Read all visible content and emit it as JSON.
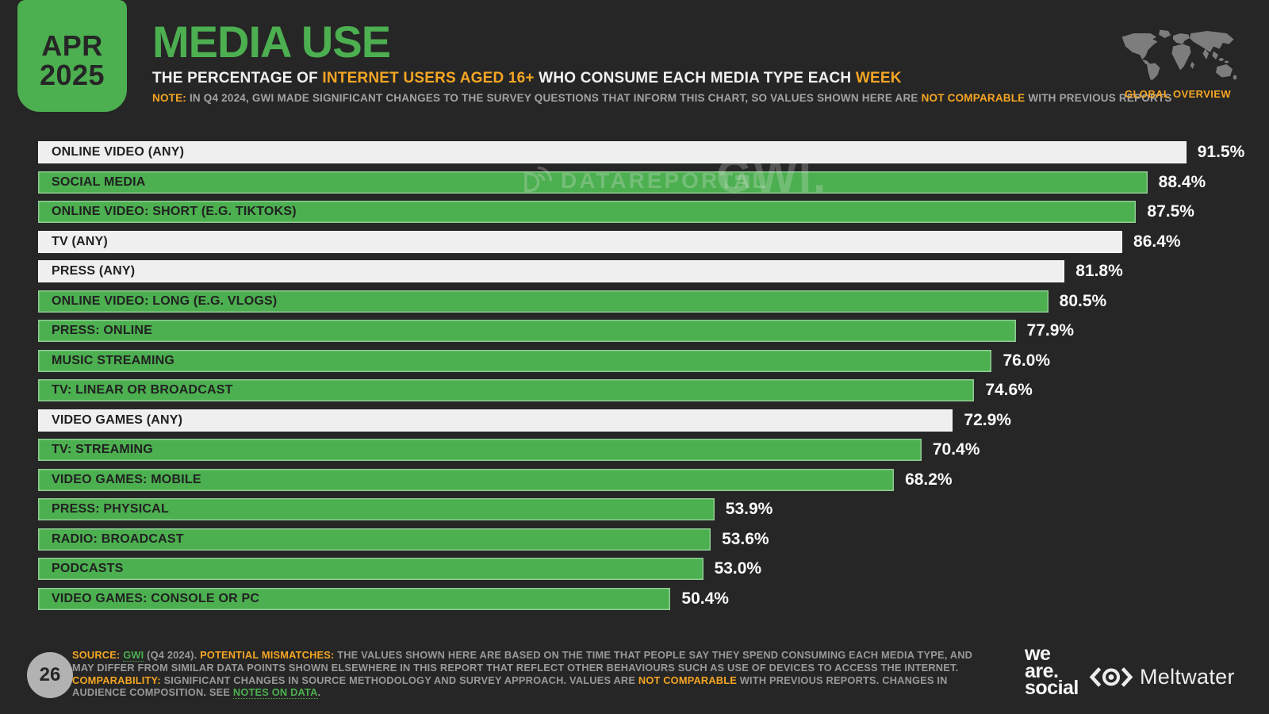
{
  "badge": {
    "month": "APR",
    "year": "2025"
  },
  "header": {
    "title": "MEDIA USE",
    "subtitle_segments": [
      {
        "t": "THE PERCENTAGE OF "
      },
      {
        "t": "INTERNET USERS AGED 16+",
        "c": "orange"
      },
      {
        "t": " WHO CONSUME EACH MEDIA TYPE EACH "
      },
      {
        "t": "WEEK",
        "c": "orange"
      }
    ],
    "note_segments": [
      {
        "t": "NOTE:",
        "c": "orange-bold"
      },
      {
        "t": " IN Q4 2024, GWI MADE SIGNIFICANT CHANGES TO THE SURVEY QUESTIONS THAT INFORM THIS CHART, SO VALUES SHOWN HERE ARE "
      },
      {
        "t": "NOT COMPARABLE",
        "c": "orange-bold"
      },
      {
        "t": " WITH PREVIOUS REPORTS"
      }
    ]
  },
  "global_overview": {
    "label": "GLOBAL OVERVIEW"
  },
  "watermark": {
    "brand": "DATAREPORTAL",
    "gwi": "GWI."
  },
  "chart_data": {
    "type": "bar",
    "orientation": "horizontal",
    "title": "MEDIA USE",
    "xlabel": "",
    "ylabel": "",
    "unit": "%",
    "xlim": [
      0,
      95
    ],
    "grid": false,
    "legend": "none",
    "categories": [
      "ONLINE VIDEO (ANY)",
      "SOCIAL MEDIA",
      "ONLINE VIDEO: SHORT (E.G. TIKTOKS)",
      "TV (ANY)",
      "PRESS (ANY)",
      "ONLINE VIDEO: LONG (E.G. VLOGS)",
      "PRESS: ONLINE",
      "MUSIC STREAMING",
      "TV: LINEAR OR BROADCAST",
      "VIDEO GAMES (ANY)",
      "TV: STREAMING",
      "VIDEO GAMES: MOBILE",
      "PRESS: PHYSICAL",
      "RADIO: BROADCAST",
      "PODCASTS",
      "VIDEO GAMES: CONSOLE OR PC"
    ],
    "values": [
      91.5,
      88.4,
      87.5,
      86.4,
      81.8,
      80.5,
      77.9,
      76.0,
      74.6,
      72.9,
      70.4,
      68.2,
      53.9,
      53.6,
      53.0,
      50.4
    ],
    "bar_styles": [
      "light",
      "green",
      "green",
      "light",
      "light",
      "green",
      "green",
      "green",
      "green",
      "light",
      "green",
      "green",
      "green",
      "green",
      "green",
      "green"
    ],
    "colors": {
      "green": "#4caf50",
      "light": "#efefef",
      "background": "#262626",
      "accent_orange": "#f5a623"
    }
  },
  "footer": {
    "page_number": "26",
    "source_segments": [
      {
        "t": "SOURCE:",
        "c": "orange-bold"
      },
      {
        "t": " "
      },
      {
        "t": "GWI",
        "c": "link",
        "n": "gwi-link",
        "i": "true"
      },
      {
        "t": " (Q4 2024). "
      },
      {
        "t": "POTENTIAL MISMATCHES:",
        "c": "orange-bold"
      },
      {
        "t": " THE VALUES SHOWN HERE ARE BASED ON THE TIME THAT PEOPLE SAY THEY SPEND CONSUMING EACH MEDIA TYPE, AND MAY DIFFER FROM SIMILAR DATA POINTS SHOWN ELSEWHERE IN THIS REPORT THAT REFLECT OTHER BEHAVIOURS SUCH AS USE OF DEVICES TO ACCESS THE INTERNET. "
      },
      {
        "t": "COMPARABILITY:",
        "c": "orange-bold"
      },
      {
        "t": " SIGNIFICANT CHANGES IN SOURCE METHODOLOGY AND SURVEY APPROACH. VALUES ARE "
      },
      {
        "t": "NOT COMPARABLE",
        "c": "orange-bold"
      },
      {
        "t": " WITH PREVIOUS REPORTS. CHANGES IN AUDIENCE COMPOSITION. SEE "
      },
      {
        "t": "NOTES ON DATA",
        "c": "link",
        "n": "notes-on-data-link",
        "i": "true"
      },
      {
        "t": "."
      }
    ],
    "logos": {
      "we_are_social_lines": [
        "we",
        "are.",
        "social"
      ],
      "meltwater_label": "Meltwater"
    }
  }
}
